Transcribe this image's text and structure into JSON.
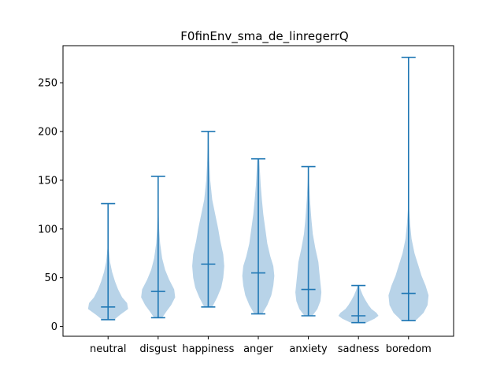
{
  "chart_data": {
    "type": "violin",
    "title": "F0finEnv_sma_de_linregerrQ",
    "xlabel": "",
    "ylabel": "",
    "ylim": [
      -10,
      288
    ],
    "yticks": [
      0,
      50,
      100,
      150,
      200,
      250
    ],
    "grid": false,
    "colors": {
      "body": "#b8d3e8",
      "line": "#1f77b4",
      "axis": "#000000"
    },
    "categories": [
      "neutral",
      "disgust",
      "happiness",
      "anger",
      "anxiety",
      "sadness",
      "boredom"
    ],
    "series": [
      {
        "category": "neutral",
        "min": 7,
        "median": 20,
        "max": 126,
        "density": [
          [
            7,
            0.3
          ],
          [
            12,
            0.6
          ],
          [
            18,
            1.0
          ],
          [
            24,
            0.95
          ],
          [
            30,
            0.7
          ],
          [
            38,
            0.5
          ],
          [
            46,
            0.35
          ],
          [
            56,
            0.2
          ],
          [
            66,
            0.1
          ],
          [
            80,
            0.03
          ],
          [
            100,
            0.01
          ],
          [
            126,
            0.005
          ]
        ]
      },
      {
        "category": "disgust",
        "min": 9,
        "median": 36,
        "max": 154,
        "density": [
          [
            9,
            0.2
          ],
          [
            15,
            0.4
          ],
          [
            22,
            0.65
          ],
          [
            30,
            0.85
          ],
          [
            38,
            0.8
          ],
          [
            48,
            0.55
          ],
          [
            58,
            0.35
          ],
          [
            70,
            0.2
          ],
          [
            85,
            0.1
          ],
          [
            100,
            0.05
          ],
          [
            120,
            0.02
          ],
          [
            154,
            0.005
          ]
        ]
      },
      {
        "category": "happiness",
        "min": 20,
        "median": 64,
        "max": 200,
        "density": [
          [
            20,
            0.2
          ],
          [
            30,
            0.45
          ],
          [
            40,
            0.65
          ],
          [
            50,
            0.75
          ],
          [
            62,
            0.8
          ],
          [
            74,
            0.75
          ],
          [
            88,
            0.6
          ],
          [
            100,
            0.5
          ],
          [
            115,
            0.35
          ],
          [
            130,
            0.2
          ],
          [
            150,
            0.1
          ],
          [
            170,
            0.05
          ],
          [
            200,
            0.01
          ]
        ]
      },
      {
        "category": "anger",
        "min": 13,
        "median": 55,
        "max": 172,
        "density": [
          [
            13,
            0.2
          ],
          [
            22,
            0.45
          ],
          [
            32,
            0.65
          ],
          [
            42,
            0.75
          ],
          [
            52,
            0.8
          ],
          [
            62,
            0.75
          ],
          [
            72,
            0.6
          ],
          [
            85,
            0.45
          ],
          [
            100,
            0.35
          ],
          [
            115,
            0.25
          ],
          [
            130,
            0.18
          ],
          [
            145,
            0.12
          ],
          [
            160,
            0.08
          ],
          [
            172,
            0.05
          ]
        ]
      },
      {
        "category": "anxiety",
        "min": 11,
        "median": 38,
        "max": 164,
        "density": [
          [
            11,
            0.2
          ],
          [
            18,
            0.45
          ],
          [
            26,
            0.6
          ],
          [
            35,
            0.65
          ],
          [
            45,
            0.6
          ],
          [
            55,
            0.55
          ],
          [
            66,
            0.5
          ],
          [
            80,
            0.35
          ],
          [
            95,
            0.22
          ],
          [
            110,
            0.15
          ],
          [
            130,
            0.08
          ],
          [
            150,
            0.03
          ],
          [
            164,
            0.01
          ]
        ]
      },
      {
        "category": "sadness",
        "min": 4,
        "median": 11,
        "max": 42,
        "density": [
          [
            4,
            0.4
          ],
          [
            8,
            0.8
          ],
          [
            11,
            1.0
          ],
          [
            14,
            0.9
          ],
          [
            18,
            0.65
          ],
          [
            22,
            0.5
          ],
          [
            27,
            0.35
          ],
          [
            32,
            0.22
          ],
          [
            37,
            0.12
          ],
          [
            42,
            0.03
          ]
        ]
      },
      {
        "category": "boredom",
        "min": 6,
        "median": 34,
        "max": 276,
        "density": [
          [
            6,
            0.35
          ],
          [
            14,
            0.75
          ],
          [
            22,
            0.95
          ],
          [
            32,
            1.0
          ],
          [
            42,
            0.85
          ],
          [
            52,
            0.65
          ],
          [
            62,
            0.5
          ],
          [
            75,
            0.3
          ],
          [
            90,
            0.15
          ],
          [
            105,
            0.08
          ],
          [
            120,
            0.03
          ],
          [
            150,
            0.01
          ],
          [
            200,
            0.004
          ],
          [
            276,
            0.002
          ]
        ]
      }
    ]
  }
}
